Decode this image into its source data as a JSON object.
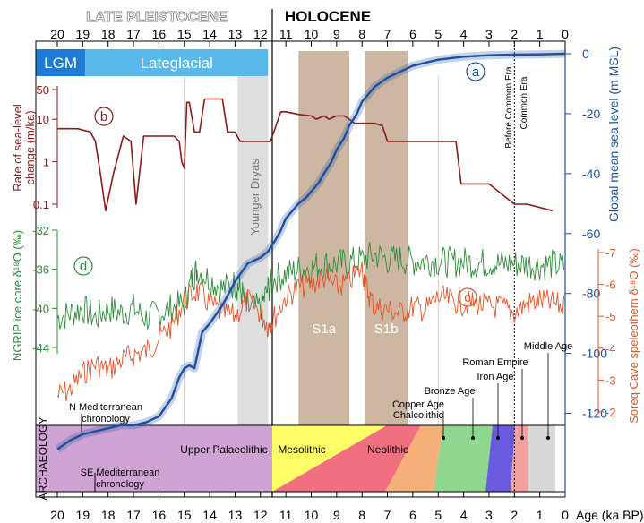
{
  "chart_data": {
    "type": "line",
    "x_axis": {
      "label": "Age (ka BP)",
      "range": [
        20,
        0
      ],
      "ticks": [
        "20",
        "19",
        "18",
        "17",
        "16",
        "15",
        "14",
        "13",
        "12",
        "11",
        "10",
        "9",
        "8",
        "7",
        "6",
        "5",
        "4",
        "3",
        "2",
        "1",
        "0"
      ]
    },
    "periods": {
      "left": "LATE PLEISTOCENE",
      "right": "HOLOCENE"
    },
    "bars": [
      {
        "label": "LGM",
        "from": 20,
        "to": 18.9,
        "color": "#1e7bd2"
      },
      {
        "label": "Lateglacial",
        "from": 18.9,
        "to": 11.7,
        "color": "#5bb8ea"
      }
    ],
    "shaded_intervals": [
      {
        "label": "Younger Dryas",
        "from": 12.9,
        "to": 11.7,
        "color": "#dedede"
      },
      {
        "label": "S1a",
        "from": 10.5,
        "to": 8.5,
        "color": "#cdb7a2"
      },
      {
        "label": "S1b",
        "from": 7.9,
        "to": 6.2,
        "color": "#cdb7a2"
      }
    ],
    "era_marker": {
      "at": 2,
      "labels": [
        "Before Common Era",
        "Common Era"
      ]
    },
    "panels": {
      "a": {
        "name": "Global mean sea level",
        "ylabel": "Global mean sea level (m MSL)",
        "ylim": [
          -130,
          0
        ],
        "ticks": [
          "0",
          "-20",
          "-40",
          "-60",
          "-80",
          "-100",
          "-120"
        ],
        "color": "#1b4fa0",
        "x": [
          20,
          19.5,
          19,
          18.5,
          18,
          17.5,
          17,
          16.5,
          16,
          15.5,
          15.2,
          15,
          14.8,
          14.6,
          14.3,
          14,
          13.5,
          13,
          12.5,
          12,
          11.7,
          11.4,
          11.2,
          11,
          10.7,
          10.5,
          10.2,
          10,
          9.7,
          9.5,
          9.2,
          9,
          8.7,
          8.5,
          8.2,
          8,
          7.5,
          7,
          6.5,
          6,
          5.5,
          5,
          4,
          3,
          2,
          1,
          0
        ],
        "y": [
          -132,
          -129,
          -127,
          -126,
          -125,
          -124,
          -124,
          -123,
          -121,
          -115,
          -108,
          -105,
          -104,
          -105,
          -93,
          -90,
          -84,
          -76,
          -70,
          -68,
          -66,
          -62,
          -59,
          -55,
          -52,
          -50,
          -48,
          -46,
          -43,
          -40,
          -36,
          -32,
          -28,
          -24,
          -20,
          -16,
          -11,
          -8,
          -6,
          -4,
          -3,
          -2,
          -1,
          -0.5,
          -0.3,
          -0.2,
          0
        ]
      },
      "b": {
        "name": "Rate of sea-level change",
        "ylabel": "Rate of sea-level change (m/ka)",
        "scale": "log",
        "ylim": [
          0.05,
          50
        ],
        "ticks": [
          "50",
          "10",
          "1",
          "0.1"
        ],
        "color": "#8b1a1a",
        "x": [
          20,
          19.2,
          18.7,
          18.5,
          18.3,
          18.1,
          17.8,
          17.4,
          17.1,
          16.9,
          16.6,
          16,
          15.4,
          15.2,
          15.1,
          15,
          14.9,
          14.8,
          14.6,
          14.5,
          14.4,
          14.2,
          14,
          13.5,
          13.3,
          13.1,
          13,
          12.8,
          12.6,
          12.4,
          12,
          11.6,
          11.3,
          11.2,
          11,
          10.5,
          10,
          9.8,
          9.5,
          9.3,
          9,
          8.7,
          8.5,
          8.3,
          8,
          7.5,
          7.2,
          7,
          6.5,
          6.2,
          6,
          5.5,
          4.3,
          4.1,
          3,
          2,
          1.5,
          0.5
        ],
        "y": [
          6,
          6,
          5,
          3,
          0.5,
          0.07,
          0.5,
          4,
          3,
          0.1,
          4,
          4,
          4,
          3,
          1,
          0.7,
          25,
          25,
          5,
          5,
          5,
          30,
          30,
          30,
          5,
          5,
          5,
          3,
          3,
          3,
          3,
          3,
          10,
          15,
          15,
          13,
          12,
          10,
          12,
          10,
          12,
          12,
          10,
          8,
          8,
          8,
          7,
          3,
          3,
          3,
          3,
          3,
          3,
          0.3,
          0.3,
          0.1,
          0.1,
          0.07
        ]
      },
      "c": {
        "name": "Soreq Cave speleothem δ18O",
        "ylabel": "Soreq Cave speleothem δ¹⁸O (‰)",
        "ylim": [
          -7,
          -2
        ],
        "ticks": [
          "-7",
          "-6",
          "-5",
          "-4",
          "-3",
          "-2"
        ],
        "color": "#e2542a",
        "x": [
          20,
          19.5,
          19,
          18.5,
          18,
          17.5,
          17,
          16.5,
          16,
          15.5,
          15,
          14.5,
          14,
          13.5,
          13,
          12.5,
          12,
          11.7,
          11.5,
          11,
          10.5,
          10,
          9.5,
          9,
          8.5,
          8,
          7.8,
          7.5,
          7,
          6.5,
          6,
          5.5,
          5,
          4.5,
          4,
          3.5,
          3,
          2.5,
          2,
          1.5,
          1,
          0.5,
          0
        ],
        "y": [
          -2.5,
          -2.7,
          -3.2,
          -3.5,
          -3.3,
          -3.6,
          -3.8,
          -3.9,
          -4.3,
          -4.7,
          -5.5,
          -5.8,
          -5.4,
          -5.1,
          -5,
          -5.5,
          -5.1,
          -4.7,
          -4.9,
          -5.6,
          -5.9,
          -6,
          -6.2,
          -5.9,
          -6.1,
          -6.5,
          -5.8,
          -5.3,
          -5.2,
          -5.1,
          -5.3,
          -5.2,
          -5.6,
          -5.5,
          -5.4,
          -5.4,
          -5.3,
          -5.3,
          -5.1,
          -5.4,
          -5.5,
          -5.4,
          -5.3
        ]
      },
      "d": {
        "name": "NGRIP ice core δ18O",
        "ylabel": "NGRIP ice core δ¹⁸O (‰)",
        "ylim": [
          -48,
          -32
        ],
        "ticks": [
          "-32",
          "-36",
          "-40",
          "-44"
        ],
        "color": "#2e8b3a",
        "x": [
          20,
          19.5,
          19,
          18.5,
          18,
          17.5,
          17,
          16.5,
          16,
          15.5,
          15,
          14.7,
          14.5,
          14,
          13.5,
          13,
          12.8,
          12.5,
          12,
          11.7,
          11.5,
          11,
          10.5,
          10,
          9.5,
          9,
          8.5,
          8,
          7.5,
          7,
          6.5,
          6,
          5.5,
          5,
          4.5,
          4,
          3.5,
          3,
          2.5,
          2,
          1.5,
          1,
          0.5,
          0
        ],
        "y": [
          -41,
          -40.5,
          -40,
          -41,
          -40,
          -40.5,
          -40,
          -41,
          -40.5,
          -40,
          -39.5,
          -37,
          -36,
          -37,
          -38,
          -37.5,
          -38,
          -40,
          -40,
          -38,
          -37,
          -36.5,
          -36,
          -35.8,
          -35.5,
          -35.5,
          -35.3,
          -35,
          -34.5,
          -35,
          -35,
          -35.2,
          -35.1,
          -35.2,
          -35.3,
          -35.2,
          -35.4,
          -35.3,
          -35.5,
          -35.4,
          -35.5,
          -35.6,
          -35.5,
          -35.8
        ]
      }
    },
    "panel_letters": [
      "a",
      "b",
      "c",
      "d"
    ],
    "archaeology": {
      "label": "ARCHAEOLOGY",
      "upper_palaeolithic": "Upper Palaeolithic",
      "n_med": "N Mediterranean chronology",
      "se_med": "SE Mediterranean chronology",
      "bands": [
        {
          "label": "Mesolithic",
          "color": "#ffff66"
        },
        {
          "label": "Neolithic",
          "color": "#f07080"
        },
        {
          "label": "Chalcolithic",
          "color": "#f5b07a"
        },
        {
          "label": "Copper Age",
          "color": "#f5b07a"
        },
        {
          "label": "Bronze Age",
          "color": "#8fd68f"
        },
        {
          "label": "Iron Age",
          "color": "#3cb88f"
        },
        {
          "label": "Roman Empire",
          "color": "#6a5ae0"
        },
        {
          "label": "Middle Age",
          "color": "#f3a0a0"
        }
      ]
    }
  }
}
